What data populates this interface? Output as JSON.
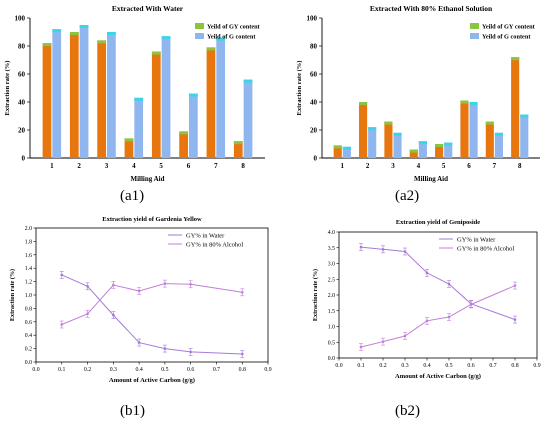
{
  "panel_labels": {
    "a1": "(a1)",
    "a2": "(a2)",
    "b1": "(b1)",
    "b2": "(b2)"
  },
  "colors": {
    "gy_bar": "#e8760f",
    "gy_bar_top": "#8bc53f",
    "g_bar": "#8fb6ef",
    "g_bar_top": "#3ad6e6",
    "line_water": "#a67ad9",
    "line_alcohol": "#c07fdb"
  },
  "chart_data": [
    {
      "type": "bar",
      "title": "Extracted With Water",
      "xlabel": "Milling Aid",
      "ylabel": "Extraction rate (%)",
      "categories": [
        "1",
        "2",
        "3",
        "4",
        "5",
        "6",
        "7",
        "8"
      ],
      "ylim": [
        0,
        100
      ],
      "yticks": [
        "0",
        "20",
        "40",
        "60",
        "80",
        "100"
      ],
      "legend_position": "top-right",
      "series": [
        {
          "name": "Yeild of GY content",
          "values": [
            82,
            90,
            84,
            14,
            76,
            19,
            79,
            12
          ]
        },
        {
          "name": "Yeild of G content",
          "values": [
            92,
            95,
            90,
            43,
            87,
            46,
            86,
            56
          ]
        }
      ]
    },
    {
      "type": "bar",
      "title": "Extracted With 80% Ethanol Solution",
      "xlabel": "Milling Aid",
      "ylabel": "Extraction rate (%)",
      "categories": [
        "1",
        "2",
        "3",
        "4",
        "5",
        "6",
        "7",
        "8"
      ],
      "ylim": [
        0,
        100
      ],
      "yticks": [
        "0",
        "20",
        "40",
        "60",
        "80",
        "100"
      ],
      "legend_position": "top-right",
      "series": [
        {
          "name": "Yeild of GY content",
          "values": [
            9,
            40,
            26,
            6,
            10,
            41,
            26,
            72
          ]
        },
        {
          "name": "Yeild of G content",
          "values": [
            8,
            22,
            18,
            12,
            11,
            40,
            18,
            31
          ]
        }
      ]
    },
    {
      "type": "line",
      "title": "Extraction yield of Gardenia Yellow",
      "xlabel": "Amount of Active Carbon (g/g)",
      "ylabel": "Extraction rate (%)",
      "xlim": [
        0.0,
        0.9
      ],
      "ylim": [
        0.0,
        2.0
      ],
      "xticks": [
        "0.0",
        "0.1",
        "0.2",
        "0.3",
        "0.4",
        "0.5",
        "0.6",
        "0.7",
        "0.8",
        "0.9"
      ],
      "yticks": [
        "0.0",
        "0.2",
        "0.4",
        "0.6",
        "0.8",
        "1.0",
        "1.2",
        "1.4",
        "1.6",
        "1.8",
        "2.0"
      ],
      "legend_position": "top-right",
      "x": [
        0.1,
        0.2,
        0.3,
        0.4,
        0.5,
        0.6,
        0.8
      ],
      "series": [
        {
          "name": "GY% in Water",
          "values": [
            1.3,
            1.13,
            0.7,
            0.29,
            0.2,
            0.15,
            0.12
          ]
        },
        {
          "name": "GY% in 80% Alcohol",
          "values": [
            0.56,
            0.72,
            1.15,
            1.06,
            1.17,
            1.16,
            1.04
          ]
        }
      ]
    },
    {
      "type": "line",
      "title": "Extraction yield of Geniposide",
      "xlabel": "Amount of Active Carbon (g/g)",
      "ylabel": "Extraction rate (%)",
      "xlim": [
        0.0,
        0.9
      ],
      "ylim": [
        0.0,
        4.0
      ],
      "xticks": [
        "0.0",
        "0.1",
        "0.2",
        "0.3",
        "0.4",
        "0.5",
        "0.6",
        "0.7",
        "0.8",
        "0.9"
      ],
      "yticks": [
        "0.0",
        "0.5",
        "1.0",
        "1.5",
        "2.0",
        "2.5",
        "3.0",
        "3.5",
        "4.0"
      ],
      "legend_position": "top-right",
      "x": [
        0.1,
        0.2,
        0.3,
        0.4,
        0.5,
        0.6,
        0.8
      ],
      "series": [
        {
          "name": "GY% in Water",
          "values": [
            3.52,
            3.45,
            3.38,
            2.7,
            2.35,
            1.72,
            1.22
          ]
        },
        {
          "name": "GY% in 80% Alcohol",
          "values": [
            0.35,
            0.52,
            0.7,
            1.18,
            1.3,
            1.7,
            2.3
          ]
        }
      ]
    }
  ]
}
